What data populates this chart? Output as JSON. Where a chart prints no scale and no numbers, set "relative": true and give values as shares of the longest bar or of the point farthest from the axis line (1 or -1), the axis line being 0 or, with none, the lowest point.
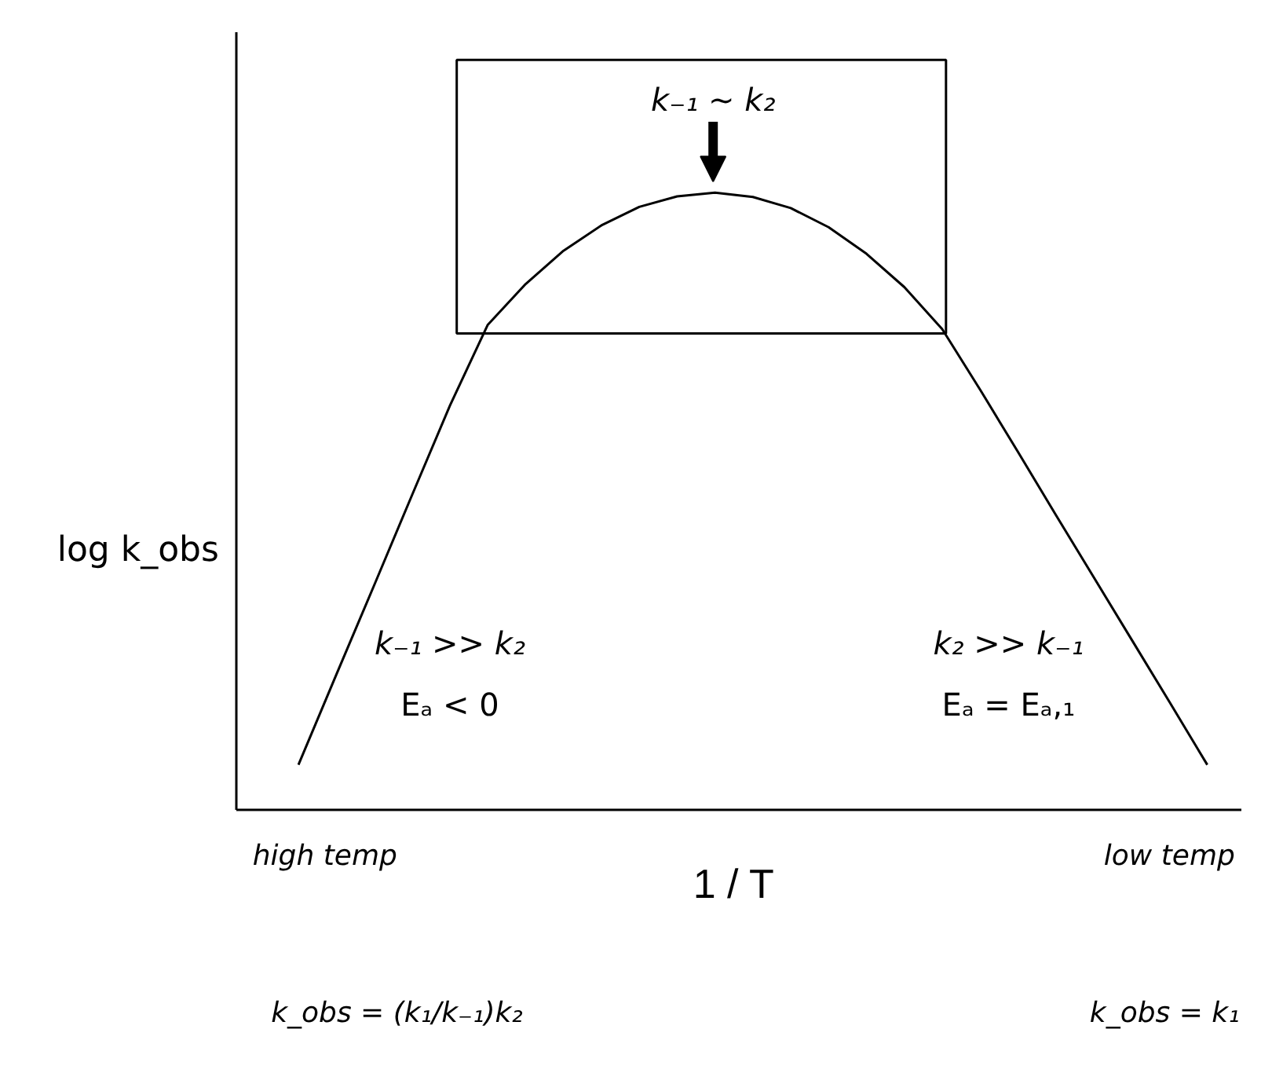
{
  "chart_data": {
    "type": "line",
    "relative": true,
    "xlabel": "1 / T",
    "ylabel": "log k_obs",
    "categories": [
      null,
      null,
      null,
      null,
      null,
      null,
      null,
      null,
      null,
      null,
      null,
      null,
      null,
      null,
      null,
      null,
      null,
      null,
      null,
      null,
      null,
      null,
      null,
      null,
      null
    ],
    "series": [
      {
        "color": "#000000",
        "values": [
          0.073,
          0.219,
          0.364,
          0.51,
          0.655,
          0.786,
          0.852,
          0.906,
          0.947,
          0.977,
          0.994,
          1.0,
          0.993,
          0.975,
          0.944,
          0.901,
          0.847,
          0.779,
          0.681,
          0.58,
          0.478,
          0.377,
          0.276,
          0.175,
          0.073
        ]
      }
    ],
    "annotations": [
      "k₋₁ ~ k₂",
      "k₋₁ >> k₂",
      "Eₐ < 0",
      "k₂ >> k₋₁",
      "Eₐ = Eₐ,₁",
      "high temp",
      "low temp",
      "k_obs = (k₁/k₋₁)k₂",
      "k_obs = k₁"
    ]
  }
}
